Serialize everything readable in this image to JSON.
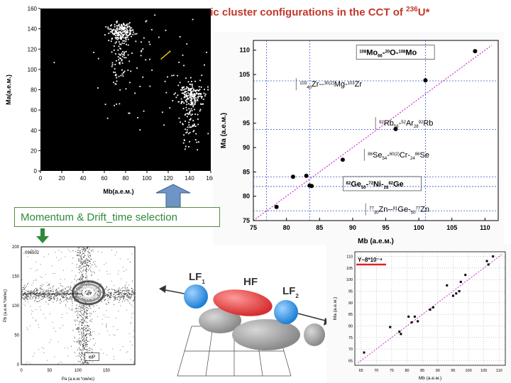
{
  "slide": {
    "title_main": "Symmetric cluster configurations in the CCT of ",
    "title_mass": "236",
    "title_elem": "U*",
    "momentum_label": "Momentum & Drift_time selection"
  },
  "colors": {
    "title": "#c0392b",
    "momentum": "#2e8b3a",
    "fit_line": "#cc33cc",
    "ref_line": "#3355cc",
    "badge_line": "#dd2222",
    "lf_ball": "#1e7fd6",
    "hf_ball": "#d63030"
  },
  "chart_data": [
    {
      "id": "scatter-dark",
      "type": "scatter",
      "xlabel": "Mb(a.e.м.)",
      "ylabel": "Ma(a.e.м.)",
      "xlim": [
        0,
        160
      ],
      "ylim": [
        0,
        160
      ],
      "xticks": [
        0,
        20,
        40,
        60,
        80,
        100,
        120,
        140,
        160
      ],
      "yticks": [
        0,
        20,
        40,
        60,
        80,
        100,
        120,
        140,
        160
      ],
      "clusters": [
        {
          "cx": 75,
          "cy": 138,
          "sx": 6,
          "sy": 5,
          "n": 180
        },
        {
          "cx": 75,
          "cy": 112,
          "sx": 4,
          "sy": 15,
          "n": 70
        },
        {
          "cx": 142,
          "cy": 75,
          "sx": 7,
          "sy": 6,
          "n": 170
        },
        {
          "cx": 140,
          "cy": 50,
          "sx": 5,
          "sy": 14,
          "n": 70
        },
        {
          "cx": 100,
          "cy": 100,
          "sx": 35,
          "sy": 35,
          "n": 90
        }
      ]
    },
    {
      "id": "mass-plot",
      "type": "scatter",
      "xlabel": "Mb (a.e.м.)",
      "ylabel": "Ma (a.e.м.)",
      "xlim": [
        75,
        112
      ],
      "ylim": [
        75,
        112
      ],
      "xticks": [
        75,
        80,
        85,
        90,
        95,
        100,
        105,
        110
      ],
      "yticks": [
        75,
        80,
        85,
        90,
        95,
        100,
        105,
        110
      ],
      "points": [
        [
          78.5,
          77.8
        ],
        [
          81,
          84
        ],
        [
          83,
          84.2
        ],
        [
          83.5,
          82.2
        ],
        [
          83.8,
          82.1
        ],
        [
          88.5,
          87.5
        ],
        [
          96.5,
          93.8
        ],
        [
          101,
          103.8
        ],
        [
          108.5,
          109.8
        ]
      ],
      "hlines": [
        77,
        82,
        84,
        93.7,
        103.7
      ],
      "vlines": [
        77,
        83.5,
        101
      ],
      "annotations": [
        {
          "pre": "108",
          "t1": "Mo",
          "s1": "66",
          "m": "20",
          "t2": "O-",
          "p2": "108",
          "t3": "Mo",
          "x": 91,
          "y": 109,
          "frame": true
        },
        {
          "pre": "103",
          "sub": "40",
          "t1": "Zr-",
          "m": "30(2)",
          "t2": "Mg-",
          "p2": "103",
          "t3": "Zr",
          "x": 82,
          "y": 102.5,
          "frame": false
        },
        {
          "pre": "92",
          "t1": "Rb",
          "s1": "56",
          "m": "52",
          "t2": "Ar",
          "s2": "28",
          "p2": "92",
          "t3": "Rb",
          "x": 94,
          "y": 94.5,
          "frame": false
        },
        {
          "pre": "86",
          "t1": "Se",
          "s1": "54",
          "m": "60(2)",
          "t2": "Cr-",
          "s2": "24",
          "p2": "86",
          "t3": "Se",
          "x": 92.3,
          "y": 88,
          "frame": false
        },
        {
          "pre": "82",
          "t1": "Ge",
          "s1": "50",
          "m": "72",
          "t2": "Ni-",
          "s2": "28",
          "p2": "82",
          "t3": "Ge",
          "x": 89,
          "y": 82,
          "frame": true
        },
        {
          "pre": "77",
          "sub": "30",
          "t1": "Zn-",
          "m": "81",
          "t2": "Ge-",
          "s2": "50",
          "p2": "77",
          "t3": "Zn",
          "x": 92.5,
          "y": 76.8,
          "frame": false
        }
      ]
    },
    {
      "id": "correlation",
      "type": "heatmap",
      "xlabel": "Pa (a.e.м.*см/нс)",
      "ylabel": "Pb (a.e.м.*см/нс)",
      "xlim": [
        0,
        200
      ],
      "ylim": [
        0,
        200
      ],
      "xticks": [
        0,
        50,
        100,
        150
      ],
      "yticks": [
        0,
        50,
        100,
        150,
        200
      ],
      "run_label": "096502",
      "corner_label": "wP"
    },
    {
      "id": "small-mass",
      "type": "scatter",
      "xlabel": "Mb (a.e.м.)",
      "ylabel": "Ma (a.e.м.)",
      "xlim": [
        63,
        112
      ],
      "ylim": [
        63,
        112
      ],
      "xticks": [
        65,
        70,
        75,
        80,
        85,
        90,
        95,
        100,
        105,
        110
      ],
      "yticks": [
        65,
        70,
        75,
        80,
        85,
        90,
        95,
        100,
        105,
        110
      ],
      "badge": "Y~8*10⁻⁴",
      "points": [
        [
          66,
          68.5
        ],
        [
          74.5,
          79.5
        ],
        [
          77.5,
          77.5
        ],
        [
          78,
          76.5
        ],
        [
          80.5,
          84
        ],
        [
          81.5,
          81.5
        ],
        [
          82.5,
          84
        ],
        [
          83.5,
          82
        ],
        [
          87.5,
          87
        ],
        [
          88.5,
          88
        ],
        [
          93,
          97.5
        ],
        [
          95,
          93
        ],
        [
          96,
          94
        ],
        [
          97,
          95
        ],
        [
          97.5,
          99
        ],
        [
          99,
          102
        ],
        [
          106,
          108
        ],
        [
          106.5,
          106.5
        ],
        [
          108,
          110
        ]
      ]
    }
  ],
  "diagram": {
    "lf1": "LF",
    "lf1_sub": "1",
    "hf": "HF",
    "lf2": "LF",
    "lf2_sub": "2"
  }
}
